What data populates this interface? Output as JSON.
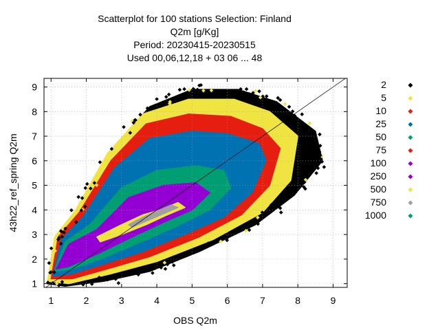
{
  "chart_data": {
    "type": "scatter",
    "title_lines": [
      "Scatterplot for  100 stations Selection: Finland",
      "Q2m [g/Kg]",
      "Period: 20230415-20230515",
      "Used  00,06,12,18  + 03 06 ... 48"
    ],
    "xlabel": "OBS Q2m",
    "ylabel": "43h22_ref_spring Q2m",
    "xlim": [
      0.8,
      9.4
    ],
    "ylim": [
      0.85,
      9.35
    ],
    "xticks": [
      "1",
      "2",
      "3",
      "4",
      "5",
      "6",
      "7",
      "8",
      "9"
    ],
    "yticks": [
      "1",
      "2",
      "3",
      "4",
      "5",
      "6",
      "7",
      "8",
      "9"
    ],
    "grid": true,
    "legend_position": "right",
    "diagonal": [
      [
        0.8,
        0.8
      ],
      [
        9.4,
        9.4
      ]
    ],
    "legend": [
      {
        "label": "2",
        "color": "#000000"
      },
      {
        "label": "5",
        "color": "#f0e442"
      },
      {
        "label": "10",
        "color": "#e51e10"
      },
      {
        "label": "25",
        "color": "#0072b2"
      },
      {
        "label": "50",
        "color": "#009e73"
      },
      {
        "label": "75",
        "color": "#e51e10"
      },
      {
        "label": "100",
        "color": "#9400d3"
      },
      {
        "label": "250",
        "color": "#9400d3"
      },
      {
        "label": "500",
        "color": "#f0e442"
      },
      {
        "label": "750",
        "color": "#a0a0a0"
      },
      {
        "label": "1000",
        "color": "#009e73"
      }
    ],
    "density_bands": [
      {
        "label": "2",
        "color": "#000000",
        "polygon": [
          [
            0.9,
            1.0
          ],
          [
            1.2,
            2.8
          ],
          [
            1.8,
            4.2
          ],
          [
            2.8,
            6.6
          ],
          [
            3.8,
            8.2
          ],
          [
            5.0,
            8.9
          ],
          [
            6.3,
            8.9
          ],
          [
            7.4,
            8.4
          ],
          [
            8.5,
            7.2
          ],
          [
            8.7,
            6.0
          ],
          [
            7.9,
            4.6
          ],
          [
            6.8,
            3.4
          ],
          [
            5.2,
            2.3
          ],
          [
            3.8,
            1.5
          ],
          [
            2.5,
            1.1
          ],
          [
            1.4,
            0.9
          ]
        ]
      },
      {
        "label": "5",
        "color": "#f0e442",
        "polygon": [
          [
            0.9,
            1.1
          ],
          [
            1.1,
            2.9
          ],
          [
            1.7,
            4.0
          ],
          [
            2.6,
            6.3
          ],
          [
            3.6,
            7.9
          ],
          [
            4.9,
            8.5
          ],
          [
            6.2,
            8.5
          ],
          [
            7.2,
            8.0
          ],
          [
            8.0,
            7.0
          ],
          [
            7.8,
            5.2
          ],
          [
            7.0,
            3.9
          ],
          [
            5.6,
            2.8
          ],
          [
            4.0,
            1.9
          ],
          [
            2.7,
            1.4
          ],
          [
            1.5,
            1.0
          ]
        ]
      },
      {
        "label": "10",
        "color": "#e51e10",
        "polygon": [
          [
            1.0,
            1.2
          ],
          [
            1.2,
            2.9
          ],
          [
            1.8,
            3.9
          ],
          [
            2.7,
            6.0
          ],
          [
            3.7,
            7.5
          ],
          [
            4.9,
            7.9
          ],
          [
            6.1,
            7.8
          ],
          [
            7.0,
            7.3
          ],
          [
            7.5,
            6.5
          ],
          [
            7.2,
            5.0
          ],
          [
            6.4,
            3.8
          ],
          [
            5.2,
            2.9
          ],
          [
            3.8,
            2.1
          ],
          [
            2.6,
            1.6
          ],
          [
            1.6,
            1.2
          ]
        ]
      },
      {
        "label": "25",
        "color": "#0072b2",
        "polygon": [
          [
            1.05,
            1.3
          ],
          [
            1.3,
            2.8
          ],
          [
            1.9,
            3.7
          ],
          [
            2.8,
            5.7
          ],
          [
            3.8,
            6.9
          ],
          [
            5.0,
            7.2
          ],
          [
            6.0,
            7.1
          ],
          [
            6.9,
            6.7
          ],
          [
            7.1,
            6.0
          ],
          [
            6.7,
            4.7
          ],
          [
            5.9,
            3.7
          ],
          [
            4.8,
            3.0
          ],
          [
            3.6,
            2.3
          ],
          [
            2.5,
            1.8
          ],
          [
            1.6,
            1.4
          ]
        ]
      },
      {
        "label": "50",
        "color": "#009e73",
        "polygon": [
          [
            1.1,
            1.5
          ],
          [
            1.4,
            2.7
          ],
          [
            2.1,
            3.4
          ],
          [
            3.0,
            4.9
          ],
          [
            4.0,
            5.6
          ],
          [
            5.1,
            5.8
          ],
          [
            5.9,
            5.6
          ],
          [
            6.1,
            4.9
          ],
          [
            5.5,
            4.0
          ],
          [
            4.5,
            3.3
          ],
          [
            3.4,
            2.6
          ],
          [
            2.4,
            2.0
          ],
          [
            1.6,
            1.6
          ]
        ]
      },
      {
        "label": "100",
        "color": "#9400d3",
        "polygon": [
          [
            1.15,
            1.6
          ],
          [
            1.5,
            2.6
          ],
          [
            2.3,
            3.2
          ],
          [
            3.2,
            4.5
          ],
          [
            4.2,
            5.0
          ],
          [
            5.1,
            5.1
          ],
          [
            5.5,
            4.7
          ],
          [
            5.0,
            4.0
          ],
          [
            4.2,
            3.5
          ],
          [
            3.3,
            2.9
          ],
          [
            2.3,
            2.2
          ],
          [
            1.5,
            1.7
          ]
        ]
      },
      {
        "label": "500",
        "color": "#f0e442",
        "polygon": [
          [
            2.3,
            2.9
          ],
          [
            3.0,
            3.4
          ],
          [
            3.6,
            3.8
          ],
          [
            4.1,
            4.0
          ],
          [
            4.6,
            4.3
          ],
          [
            4.8,
            4.1
          ],
          [
            4.3,
            3.8
          ],
          [
            3.7,
            3.4
          ],
          [
            3.0,
            3.0
          ],
          [
            2.4,
            2.7
          ]
        ]
      },
      {
        "label": "750",
        "color": "#a0a0a0",
        "polygon": [
          [
            3.2,
            3.4
          ],
          [
            3.6,
            3.7
          ],
          [
            4.0,
            3.95
          ],
          [
            4.4,
            4.2
          ],
          [
            4.6,
            4.1
          ],
          [
            4.2,
            3.85
          ],
          [
            3.8,
            3.6
          ],
          [
            3.3,
            3.3
          ]
        ]
      }
    ]
  }
}
